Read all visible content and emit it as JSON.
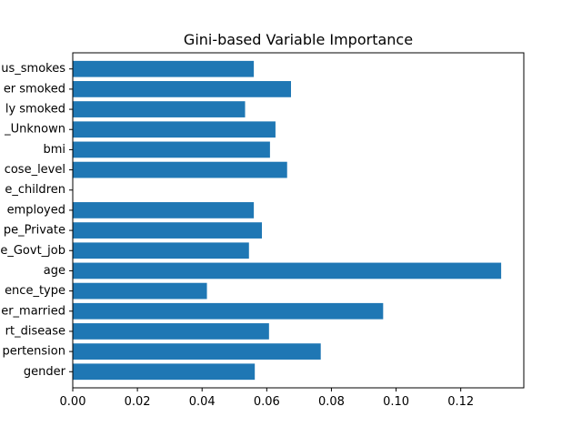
{
  "chart_data": {
    "type": "bar",
    "orientation": "horizontal",
    "title": "Gini-based Variable Importance",
    "xlabel": "",
    "ylabel": "",
    "bar_color": "#1f77b4",
    "xlim": [
      0,
      0.1395
    ],
    "x_ticks": [
      "0.00",
      "0.02",
      "0.04",
      "0.06",
      "0.08",
      "0.10",
      "0.12"
    ],
    "categories": [
      "gender",
      "pertension",
      "rt_disease",
      "er_married",
      "ence_type",
      "age",
      "e_Govt_job",
      "pe_Private",
      "employed",
      "e_children",
      "cose_level",
      "bmi",
      "_Unknown",
      "ly smoked",
      "er smoked",
      "us_smokes"
    ],
    "values": [
      0.0563,
      0.0767,
      0.0607,
      0.096,
      0.0415,
      0.1325,
      0.0545,
      0.0585,
      0.056,
      0.0,
      0.0663,
      0.061,
      0.0627,
      0.0533,
      0.0675,
      0.056
    ]
  }
}
